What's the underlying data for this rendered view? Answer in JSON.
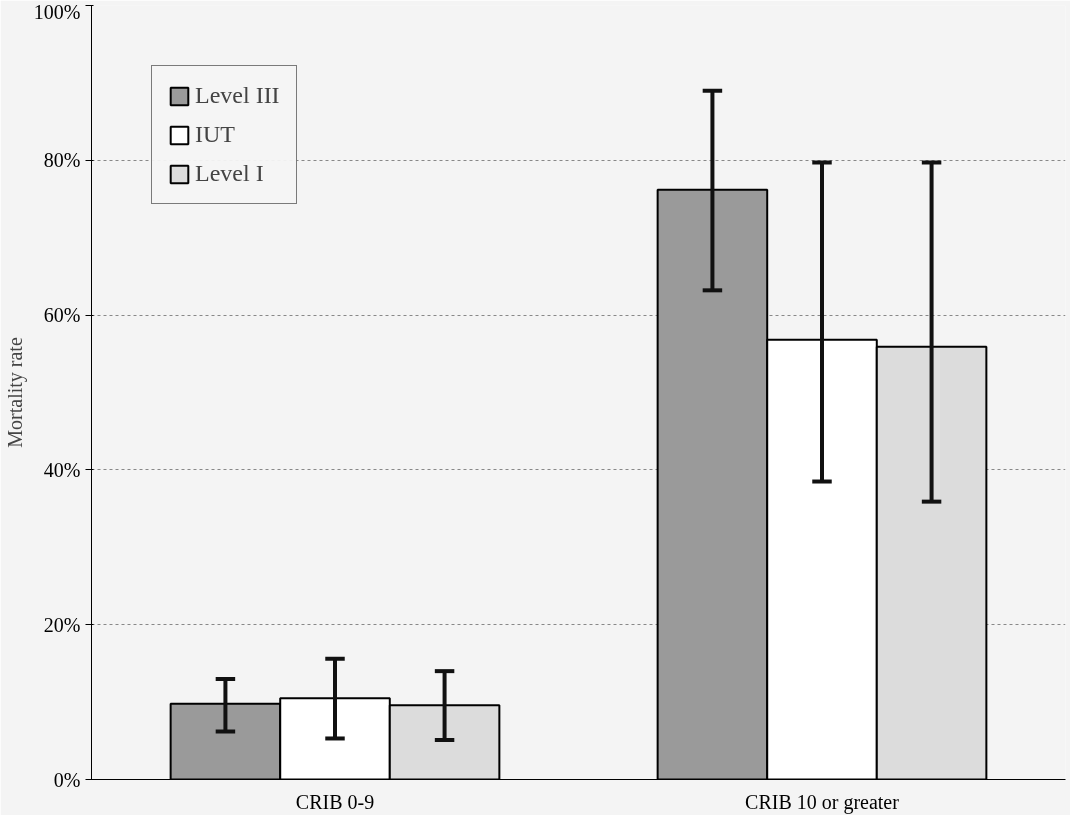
{
  "chart_data": {
    "type": "bar",
    "ylabel": "Mortality rate",
    "categories": [
      "CRIB 0-9",
      "CRIB 10 or greater"
    ],
    "series": [
      {
        "name": "Level III",
        "color": "#9a9a9a",
        "values": [
          9.8,
          76.2
        ],
        "errors": [
          [
            6.2,
            13.0
          ],
          [
            63.2,
            89.0
          ]
        ]
      },
      {
        "name": "IUT",
        "color": "#ffffff",
        "values": [
          10.5,
          56.8
        ],
        "errors": [
          [
            5.3,
            15.6
          ],
          [
            38.5,
            79.7
          ]
        ]
      },
      {
        "name": "Level I",
        "color": "#dcdcdc",
        "values": [
          9.6,
          55.9
        ],
        "errors": [
          [
            5.1,
            14.0
          ],
          [
            35.9,
            79.7
          ]
        ]
      }
    ],
    "ylim": [
      0,
      100
    ],
    "yticks": [
      {
        "value": 0,
        "label": "0%"
      },
      {
        "value": 20,
        "label": "20%"
      },
      {
        "value": 40,
        "label": "40%"
      },
      {
        "value": 60,
        "label": "60%"
      },
      {
        "value": 80,
        "label": "80%"
      },
      {
        "value": 100,
        "label": "100%"
      }
    ],
    "grid": "y",
    "legend": "top left"
  }
}
